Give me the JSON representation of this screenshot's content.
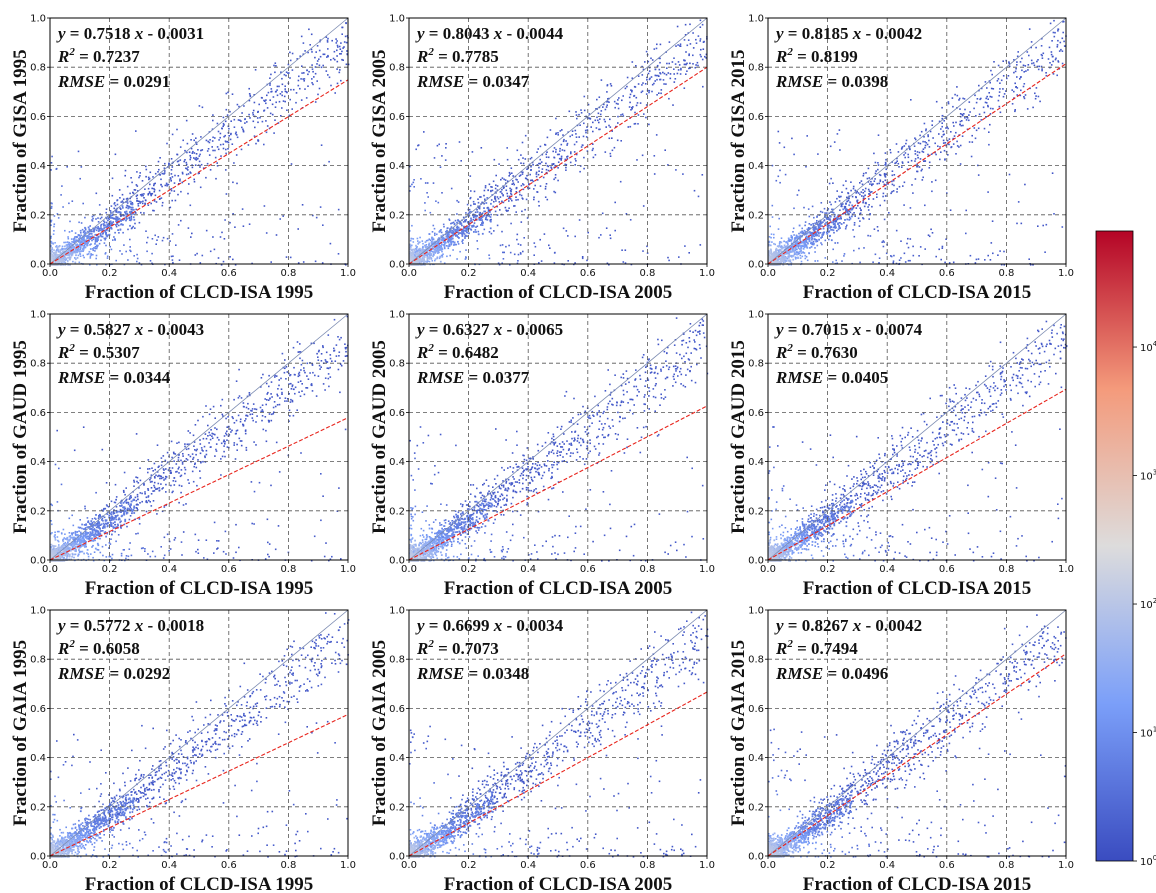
{
  "chart_data": {
    "type": "scatter",
    "panel_layout": "3x3 grid",
    "axis_range": [
      0,
      1
    ],
    "ticks": [
      "0.0",
      "0.2",
      "0.4",
      "0.6",
      "0.8",
      "1.0"
    ],
    "grid": true,
    "reference_line": "1:1 diagonal",
    "colorbar": {
      "scale": "log",
      "colors": [
        "#3a4cc0",
        "#dddcdc",
        "#b40426"
      ],
      "ticks": [
        {
          "base": "10",
          "exp": "0",
          "value": 1
        },
        {
          "base": "10",
          "exp": "1",
          "value": 10
        },
        {
          "base": "10",
          "exp": "2",
          "value": 100
        },
        {
          "base": "10",
          "exp": "3",
          "value": 1000
        },
        {
          "base": "10",
          "exp": "4",
          "value": 10000
        }
      ],
      "max_value": 80000
    },
    "panels": [
      {
        "xlabel": "Fraction of CLCD-ISA 1995",
        "ylabel": "Fraction of GISA 1995",
        "slope": 0.7518,
        "intercept": -0.0031,
        "eq_slope": "0.7518",
        "eq_intercept": "0.0031",
        "r2": "0.7237",
        "rmse": "0.0291"
      },
      {
        "xlabel": "Fraction of CLCD-ISA 2005",
        "ylabel": "Fraction of GISA 2005",
        "slope": 0.8043,
        "intercept": -0.0044,
        "eq_slope": "0.8043",
        "eq_intercept": "0.0044",
        "r2": "0.7785",
        "rmse": "0.0347"
      },
      {
        "xlabel": "Fraction of CLCD-ISA 2015",
        "ylabel": "Fraction of GISA 2015",
        "slope": 0.8185,
        "intercept": -0.0042,
        "eq_slope": "0.8185",
        "eq_intercept": "0.0042",
        "r2": "0.8199",
        "rmse": "0.0398"
      },
      {
        "xlabel": "Fraction of CLCD-ISA 1995",
        "ylabel": "Fraction of GAUD 1995",
        "slope": 0.5827,
        "intercept": -0.0043,
        "eq_slope": "0.5827",
        "eq_intercept": "0.0043",
        "r2": "0.5307",
        "rmse": "0.0344"
      },
      {
        "xlabel": "Fraction of CLCD-ISA 2005",
        "ylabel": "Fraction of GAUD 2005",
        "slope": 0.6327,
        "intercept": -0.0065,
        "eq_slope": "0.6327",
        "eq_intercept": "0.0065",
        "r2": "0.6482",
        "rmse": "0.0377"
      },
      {
        "xlabel": "Fraction of CLCD-ISA 2015",
        "ylabel": "Fraction of GAUD 2015",
        "slope": 0.7015,
        "intercept": -0.0074,
        "eq_slope": "0.7015",
        "eq_intercept": "0.0074",
        "r2": "0.7630",
        "rmse": "0.0405"
      },
      {
        "xlabel": "Fraction of CLCD-ISA 1995",
        "ylabel": "Fraction of GAIA 1995",
        "slope": 0.5772,
        "intercept": -0.0018,
        "eq_slope": "0.5772",
        "eq_intercept": "0.0018",
        "r2": "0.6058",
        "rmse": "0.0292"
      },
      {
        "xlabel": "Fraction of CLCD-ISA 2005",
        "ylabel": "Fraction of GAIA 2005",
        "slope": 0.6699,
        "intercept": -0.0034,
        "eq_slope": "0.6699",
        "eq_intercept": "0.0034",
        "r2": "0.7073",
        "rmse": "0.0348"
      },
      {
        "xlabel": "Fraction of CLCD-ISA 2015",
        "ylabel": "Fraction of GAIA 2015",
        "slope": 0.8267,
        "intercept": -0.0042,
        "eq_slope": "0.8267",
        "eq_intercept": "0.0042",
        "r2": "0.7494",
        "rmse": "0.0496"
      }
    ]
  },
  "stat_labels": {
    "y": "y",
    "equals": " = ",
    "x": "x",
    "minus": " - ",
    "r": "R",
    "r_sup": "2",
    "rmse": "RMSE"
  },
  "colors": {
    "fit_line": "#e8241c",
    "identity_line": "#7a8ab0",
    "grid": "#555555"
  }
}
